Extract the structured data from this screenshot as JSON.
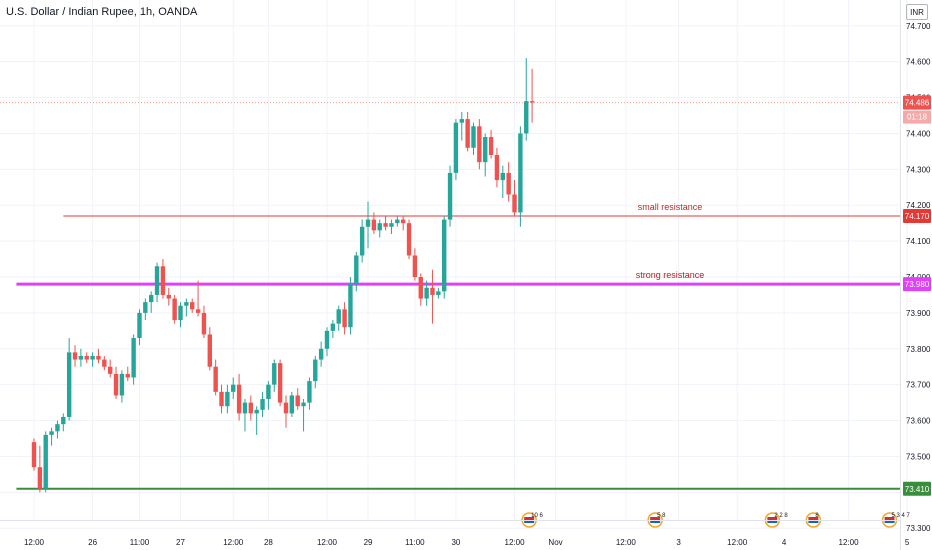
{
  "chart_title": "U.S. Dollar / Indian Rupee, 1h, OANDA",
  "currency_label": "INR",
  "chart_data": {
    "type": "candlestick",
    "title": "U.S. Dollar / Indian Rupee, 1h, OANDA",
    "ylim": [
      73.27,
      74.73
    ],
    "y_ticks": [
      "74.700",
      "74.600",
      "74.500",
      "74.400",
      "74.300",
      "74.200",
      "74.100",
      "74.000",
      "73.900",
      "73.800",
      "73.700",
      "73.600",
      "73.500",
      "73.400",
      "73.300"
    ],
    "x_ticks": [
      {
        "label": "12:00",
        "pos": 0.0
      },
      {
        "label": "26",
        "pos": 10.0
      },
      {
        "label": "11:00",
        "pos": 18.0
      },
      {
        "label": "27",
        "pos": 25.0
      },
      {
        "label": "12:00",
        "pos": 34.0
      },
      {
        "label": "28",
        "pos": 40.0
      },
      {
        "label": "12:00",
        "pos": 50.0
      },
      {
        "label": "29",
        "pos": 57.0
      },
      {
        "label": "11:00",
        "pos": 65.0
      },
      {
        "label": "30",
        "pos": 72.0
      },
      {
        "label": "12:00",
        "pos": 82.0
      },
      {
        "label": "Nov",
        "pos": 89.0
      },
      {
        "label": "12:00",
        "pos": 101.0
      },
      {
        "label": "3",
        "pos": 110.0
      },
      {
        "label": "12:00",
        "pos": 120.0
      },
      {
        "label": "4",
        "pos": 128.0
      },
      {
        "label": "12:00",
        "pos": 139.0
      },
      {
        "label": "5",
        "pos": 149.0
      }
    ],
    "candles": [
      [
        73.54,
        73.55,
        73.46,
        73.47
      ],
      [
        73.47,
        73.53,
        73.4,
        73.41
      ],
      [
        73.41,
        73.57,
        73.4,
        73.56
      ],
      [
        73.56,
        73.58,
        73.53,
        73.57
      ],
      [
        73.57,
        73.6,
        73.55,
        73.59
      ],
      [
        73.59,
        73.62,
        73.57,
        73.61
      ],
      [
        73.61,
        73.83,
        73.6,
        73.79
      ],
      [
        73.79,
        73.81,
        73.75,
        73.77
      ],
      [
        73.77,
        73.8,
        73.75,
        73.78
      ],
      [
        73.78,
        73.79,
        73.76,
        73.77
      ],
      [
        73.77,
        73.79,
        73.75,
        73.78
      ],
      [
        73.78,
        73.8,
        73.76,
        73.77
      ],
      [
        73.77,
        73.78,
        73.74,
        73.75
      ],
      [
        73.75,
        73.77,
        73.72,
        73.73
      ],
      [
        73.73,
        73.75,
        73.66,
        73.67
      ],
      [
        73.67,
        73.74,
        73.65,
        73.73
      ],
      [
        73.73,
        73.75,
        73.71,
        73.72
      ],
      [
        73.72,
        73.84,
        73.7,
        73.83
      ],
      [
        73.83,
        73.91,
        73.81,
        73.9
      ],
      [
        73.9,
        73.94,
        73.88,
        73.93
      ],
      [
        73.93,
        73.96,
        73.9,
        73.95
      ],
      [
        73.95,
        74.04,
        73.93,
        74.03
      ],
      [
        74.03,
        74.05,
        73.94,
        73.95
      ],
      [
        73.95,
        73.97,
        73.92,
        73.94
      ],
      [
        73.94,
        73.95,
        73.87,
        73.88
      ],
      [
        73.88,
        73.93,
        73.86,
        73.92
      ],
      [
        73.92,
        73.94,
        73.89,
        73.93
      ],
      [
        73.93,
        73.94,
        73.9,
        73.91
      ],
      [
        73.91,
        73.99,
        73.89,
        73.9
      ],
      [
        73.9,
        73.92,
        73.83,
        73.84
      ],
      [
        73.84,
        73.86,
        73.74,
        73.75
      ],
      [
        73.75,
        73.77,
        73.67,
        73.68
      ],
      [
        73.68,
        73.7,
        73.62,
        73.64
      ],
      [
        73.64,
        73.7,
        73.62,
        73.68
      ],
      [
        73.68,
        73.72,
        73.66,
        73.7
      ],
      [
        73.7,
        73.73,
        73.6,
        73.62
      ],
      [
        73.62,
        73.66,
        73.57,
        73.65
      ],
      [
        73.65,
        73.67,
        73.6,
        73.62
      ],
      [
        73.62,
        73.64,
        73.56,
        73.63
      ],
      [
        73.63,
        73.68,
        73.61,
        73.66
      ],
      [
        73.66,
        73.71,
        73.63,
        73.7
      ],
      [
        73.7,
        73.77,
        73.68,
        73.76
      ],
      [
        73.76,
        73.77,
        73.64,
        73.65
      ],
      [
        73.65,
        73.67,
        73.58,
        73.62
      ],
      [
        73.62,
        73.68,
        73.61,
        73.67
      ],
      [
        73.67,
        73.69,
        73.63,
        73.64
      ],
      [
        73.64,
        73.66,
        73.57,
        73.65
      ],
      [
        73.65,
        73.72,
        73.63,
        73.71
      ],
      [
        73.71,
        73.78,
        73.69,
        73.77
      ],
      [
        73.77,
        73.82,
        73.75,
        73.8
      ],
      [
        73.8,
        73.86,
        73.78,
        73.85
      ],
      [
        73.85,
        73.88,
        73.83,
        73.87
      ],
      [
        73.87,
        73.92,
        73.85,
        73.91
      ],
      [
        73.91,
        73.93,
        73.84,
        73.86
      ],
      [
        73.86,
        74.0,
        73.84,
        73.98
      ],
      [
        73.98,
        74.07,
        73.96,
        74.06
      ],
      [
        74.06,
        74.16,
        74.04,
        74.14
      ],
      [
        74.14,
        74.21,
        74.08,
        74.16
      ],
      [
        74.16,
        74.18,
        74.12,
        74.13
      ],
      [
        74.13,
        74.16,
        74.11,
        74.15
      ],
      [
        74.15,
        74.17,
        74.13,
        74.14
      ],
      [
        74.14,
        74.16,
        74.12,
        74.15
      ],
      [
        74.15,
        74.17,
        74.14,
        74.16
      ],
      [
        74.16,
        74.17,
        74.13,
        74.15
      ],
      [
        74.15,
        74.16,
        74.05,
        74.06
      ],
      [
        74.06,
        74.08,
        73.99,
        74.0
      ],
      [
        74.0,
        74.01,
        73.92,
        73.94
      ],
      [
        73.94,
        73.99,
        73.92,
        73.97
      ],
      [
        73.97,
        74.02,
        73.87,
        73.95
      ],
      [
        73.95,
        73.97,
        73.94,
        73.96
      ],
      [
        73.96,
        74.17,
        73.94,
        74.16
      ],
      [
        74.16,
        74.31,
        74.14,
        74.29
      ],
      [
        74.29,
        74.44,
        74.27,
        74.43
      ],
      [
        74.43,
        74.46,
        74.38,
        74.44
      ],
      [
        74.44,
        74.46,
        74.35,
        74.36
      ],
      [
        74.36,
        74.43,
        74.34,
        74.42
      ],
      [
        74.42,
        74.44,
        74.3,
        74.32
      ],
      [
        74.32,
        74.4,
        74.28,
        74.39
      ],
      [
        74.39,
        74.41,
        74.33,
        74.34
      ],
      [
        74.34,
        74.36,
        74.25,
        74.27
      ],
      [
        74.27,
        74.31,
        74.22,
        74.29
      ],
      [
        74.29,
        74.32,
        74.21,
        74.23
      ],
      [
        74.23,
        74.27,
        74.17,
        74.18
      ],
      [
        74.18,
        74.42,
        74.14,
        74.4
      ],
      [
        74.4,
        74.61,
        74.38,
        74.49
      ],
      [
        74.49,
        74.58,
        74.43,
        74.486
      ]
    ],
    "horizontal_lines": [
      {
        "price": 74.17,
        "price_label": "74.170",
        "annotation": "small resistance",
        "color": "#e53935",
        "width": 1,
        "x_start": 5
      },
      {
        "price": 73.98,
        "price_label": "73.980",
        "annotation": "strong resistance",
        "color": "#e040fb",
        "width": 3,
        "x_start": -3
      },
      {
        "price": 73.41,
        "price_label": "73.410",
        "annotation": "",
        "color": "#388e3c",
        "width": 2,
        "x_start": -3
      }
    ],
    "current_price": {
      "price": 74.486,
      "label": "74.486",
      "countdown": "01:18",
      "color": "#ef5350"
    },
    "event_markers": [
      {
        "pos": 84.5,
        "label": "10 6"
      },
      {
        "pos": 106.0,
        "label": "5 8"
      },
      {
        "pos": 126.0,
        "label": "2 2 8"
      },
      {
        "pos": 133.0,
        "label": "8"
      },
      {
        "pos": 146.0,
        "label": "5 3 4 7"
      }
    ],
    "colors": {
      "up": "#26a69a",
      "down": "#ef5350",
      "grid": "#f0f3fa",
      "text": "#131722"
    }
  }
}
